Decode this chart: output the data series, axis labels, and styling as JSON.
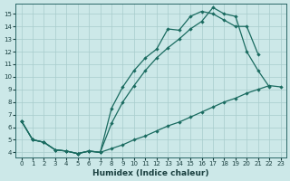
{
  "xlabel": "Humidex (Indice chaleur)",
  "bg_color": "#cce8e8",
  "grid_color": "#a8cccc",
  "line_color": "#1a6b60",
  "xlim": [
    -0.5,
    23.5
  ],
  "ylim": [
    3.6,
    15.8
  ],
  "xticks": [
    0,
    1,
    2,
    3,
    4,
    5,
    6,
    7,
    8,
    9,
    10,
    11,
    12,
    13,
    14,
    15,
    16,
    17,
    18,
    19,
    20,
    21,
    22,
    23
  ],
  "yticks": [
    4,
    5,
    6,
    7,
    8,
    9,
    10,
    11,
    12,
    13,
    14,
    15
  ],
  "line1_x": [
    0,
    1,
    2,
    3,
    4,
    5,
    6,
    7,
    8,
    9,
    10,
    11,
    12,
    13,
    14,
    15,
    16,
    17,
    18,
    19,
    20,
    21,
    22,
    23
  ],
  "line1_y": [
    6.5,
    5.0,
    4.8,
    4.2,
    4.1,
    3.9,
    4.1,
    4.0,
    4.3,
    4.6,
    5.0,
    5.3,
    5.7,
    6.1,
    6.4,
    6.8,
    7.2,
    7.6,
    8.0,
    8.3,
    8.7,
    9.0,
    9.3,
    9.2
  ],
  "line2_x": [
    0,
    1,
    2,
    3,
    4,
    5,
    6,
    7,
    8,
    9,
    10,
    11,
    12,
    13,
    14,
    15,
    16,
    17,
    18,
    19,
    20,
    21
  ],
  "line2_y": [
    6.5,
    5.0,
    4.8,
    4.2,
    4.1,
    3.9,
    4.1,
    4.0,
    7.5,
    9.2,
    10.5,
    11.5,
    12.2,
    13.8,
    13.7,
    14.8,
    15.2,
    15.0,
    14.5,
    14.0,
    14.0,
    11.8
  ],
  "line3_x": [
    0,
    1,
    2,
    3,
    4,
    5,
    6,
    7,
    8,
    9,
    10,
    11,
    12,
    13,
    14,
    15,
    16,
    17,
    18,
    19,
    20,
    21,
    22
  ],
  "line3_y": [
    6.5,
    5.0,
    4.8,
    4.2,
    4.1,
    3.9,
    4.1,
    4.0,
    6.3,
    8.0,
    9.3,
    10.5,
    11.5,
    12.3,
    13.0,
    13.8,
    14.4,
    15.5,
    15.0,
    14.8,
    12.0,
    10.5,
    9.2
  ]
}
